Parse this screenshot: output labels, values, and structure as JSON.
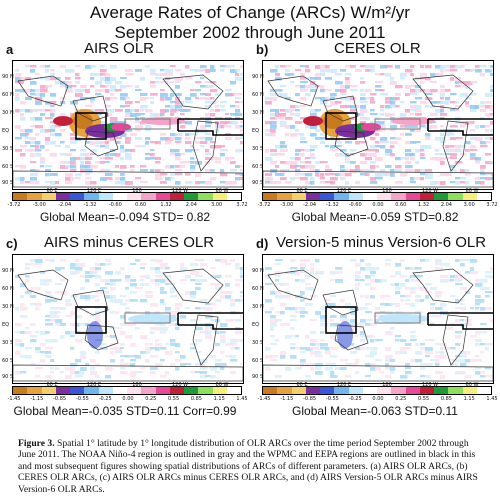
{
  "header": {
    "title_line1": "Average Rates of Change (ARCs) W/m²/yr",
    "title_line2": "September 2002 through June 2011"
  },
  "panels": [
    {
      "letter": "a",
      "title": "AIRS OLR",
      "stats": "Global Mean=-0.094  STD= 0.82",
      "ticks": [
        "-3.72",
        "-3.00",
        "-2.04",
        "-1.32",
        "-0.60",
        "0.60",
        "1.32",
        "2.04",
        "3.00",
        "3.72"
      ]
    },
    {
      "letter": "b)",
      "title": "CERES OLR",
      "stats": "Global Mean=-0.059  STD=0.82",
      "ticks": [
        "-3.72",
        "-3.00",
        "-2.04",
        "-1.32",
        "-0.60",
        "0.00",
        "0.60",
        "1.32",
        "2.04",
        "3.00",
        "3.72"
      ]
    },
    {
      "letter": "c)",
      "title": "AIRS minus CERES OLR",
      "stats": "Global Mean=-0.035 STD=0.11 Corr=0.99",
      "ticks": [
        "-1.45",
        "-1.15",
        "-0.85",
        "-0.55",
        "-0.25",
        "0.00",
        "0.25",
        "0.55",
        "0.85",
        "1.15",
        "1.45"
      ]
    },
    {
      "letter": "d)",
      "title": "Version-5 minus Version-6 OLR",
      "stats": "Global Mean=-0.063 STD=0.11",
      "ticks": [
        "-1.45",
        "-1.15",
        "-0.85",
        "-0.55",
        "-0.25",
        "0.00",
        "0.25",
        "0.55",
        "0.85",
        "1.15",
        "1.45"
      ]
    }
  ],
  "axes": {
    "lat_labels": [
      "90 N",
      "60 N",
      "30 N",
      "EQ",
      "30 S",
      "60 S",
      "90 S"
    ],
    "lon_labels": [
      "60 E",
      "120 E",
      "180",
      "120 W",
      "60 W"
    ]
  },
  "colorbar_colors": [
    "#c87a1e",
    "#e6a23c",
    "#f3d06c",
    "#7b2f9e",
    "#3a55d6",
    "#6fb5f0",
    "#bfe6fb",
    "#ffffff",
    "#fde1ee",
    "#f5a3c8",
    "#e6499a",
    "#c21f3a",
    "#1f9a3b",
    "#8ee05a",
    "#f6f07a",
    "#ffffff"
  ],
  "caption": {
    "label": "Figure 3.",
    "text": "Spatial 1° latitude by 1° longitude distribution of OLR ARCs over the time period September 2002 through June 2011. The NOAA Niño-4 region is outlined in gray and the WPMC and EEPA regions are outlined in black in this and most subsequent figures showing spatial distributions of ARCs of different parameters. (a) AIRS OLR ARCs, (b) CERES OLR ARCs, (c) AIRS OLR ARCs minus CERES OLR ARCs, and (d) AIRS Version-5 OLR ARCs minus AIRS Version-6 OLR ARCs."
  }
}
